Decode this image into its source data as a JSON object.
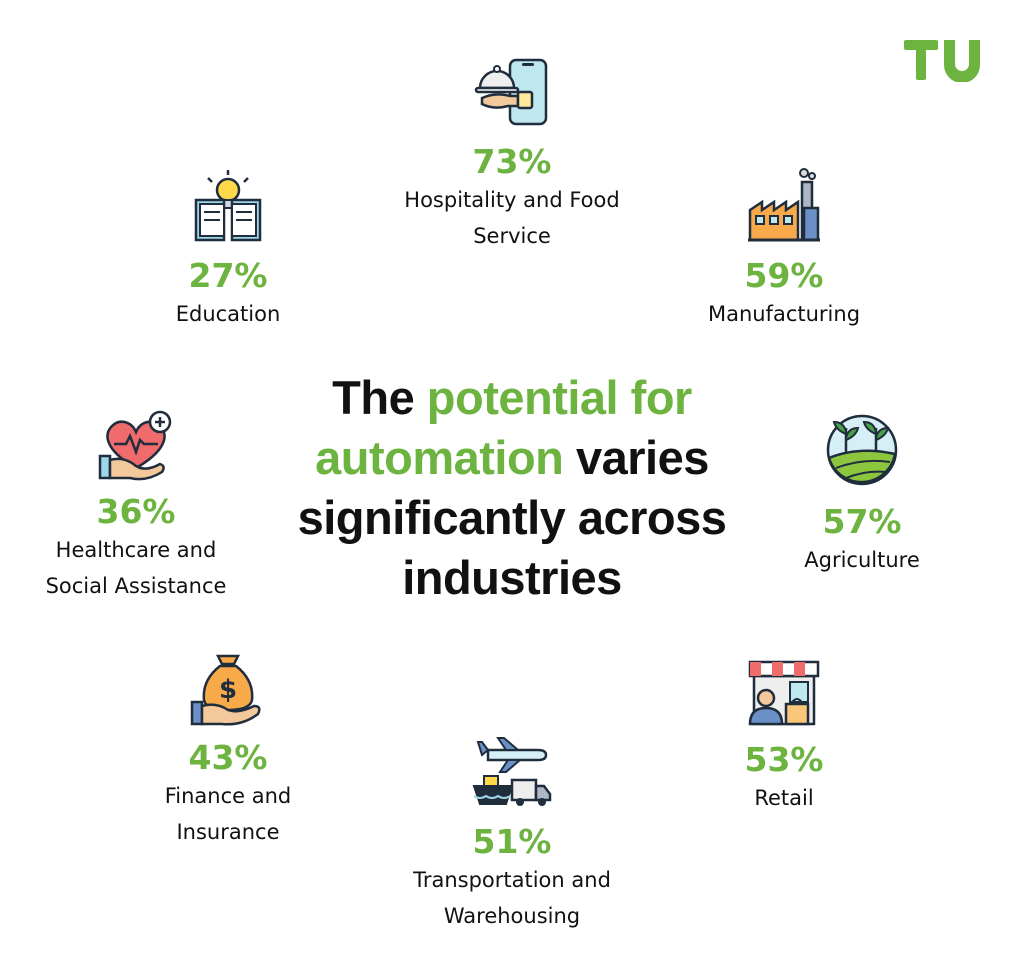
{
  "brand": {
    "logo_text": "TU",
    "logo_color": "#6db33f"
  },
  "colors": {
    "accent": "#6db33f",
    "text": "#111111",
    "icon_outline": "#1f2d3d"
  },
  "title": {
    "part1": "The ",
    "accent1": "potential for automation",
    "part2": " varies significantly across industries"
  },
  "industries": {
    "hospitality": {
      "percent": "73%",
      "label_line1": "Hospitality and Food",
      "label_line2": "Service",
      "icon": "food-service-icon"
    },
    "education": {
      "percent": "27%",
      "label_line1": "Education",
      "icon": "book-lightbulb-icon"
    },
    "manufacturing": {
      "percent": "59%",
      "label_line1": "Manufacturing",
      "icon": "factory-icon"
    },
    "healthcare": {
      "percent": "36%",
      "label_line1": "Healthcare and",
      "label_line2": "Social Assistance",
      "icon": "heart-hand-icon"
    },
    "agriculture": {
      "percent": "57%",
      "label_line1": "Agriculture",
      "icon": "farm-field-icon"
    },
    "finance": {
      "percent": "43%",
      "label_line1": "Finance and",
      "label_line2": "Insurance",
      "icon": "money-bag-hand-icon"
    },
    "retail": {
      "percent": "53%",
      "label_line1": "Retail",
      "icon": "storefront-icon"
    },
    "transport": {
      "percent": "51%",
      "label_line1": "Transportation and",
      "label_line2": "Warehousing",
      "icon": "plane-ship-truck-icon"
    }
  }
}
